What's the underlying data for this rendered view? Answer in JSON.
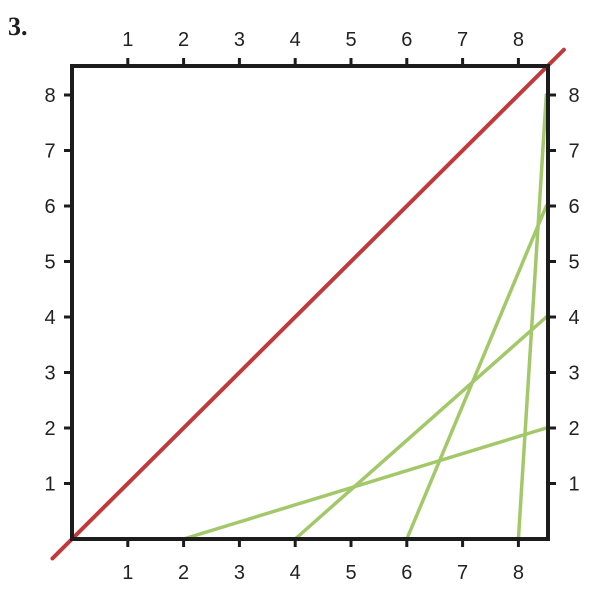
{
  "problem_number": "3.",
  "axes": {
    "top_labels": [
      "1",
      "2",
      "3",
      "4",
      "5",
      "6",
      "7",
      "8"
    ],
    "bottom_labels": [
      "1",
      "2",
      "3",
      "4",
      "5",
      "6",
      "7",
      "8"
    ],
    "left_labels": [
      "1",
      "2",
      "3",
      "4",
      "5",
      "6",
      "7",
      "8"
    ],
    "right_labels": [
      "1",
      "2",
      "3",
      "4",
      "5",
      "6",
      "7",
      "8"
    ]
  },
  "colors": {
    "frame": "#1c1c1c",
    "diagonal": "#c0393b",
    "lines": "#a3c86a"
  },
  "diagonal": {
    "from": [
      0,
      0
    ],
    "to": [
      8.5,
      8.5
    ]
  },
  "green_lines": [
    {
      "from": [
        2,
        0
      ],
      "to": [
        8.5,
        2
      ]
    },
    {
      "from": [
        4,
        0
      ],
      "to": [
        8.5,
        4
      ]
    },
    {
      "from": [
        6,
        0
      ],
      "to": [
        8.5,
        6
      ]
    },
    {
      "from": [
        8,
        0
      ],
      "to": [
        8.5,
        8
      ]
    }
  ]
}
